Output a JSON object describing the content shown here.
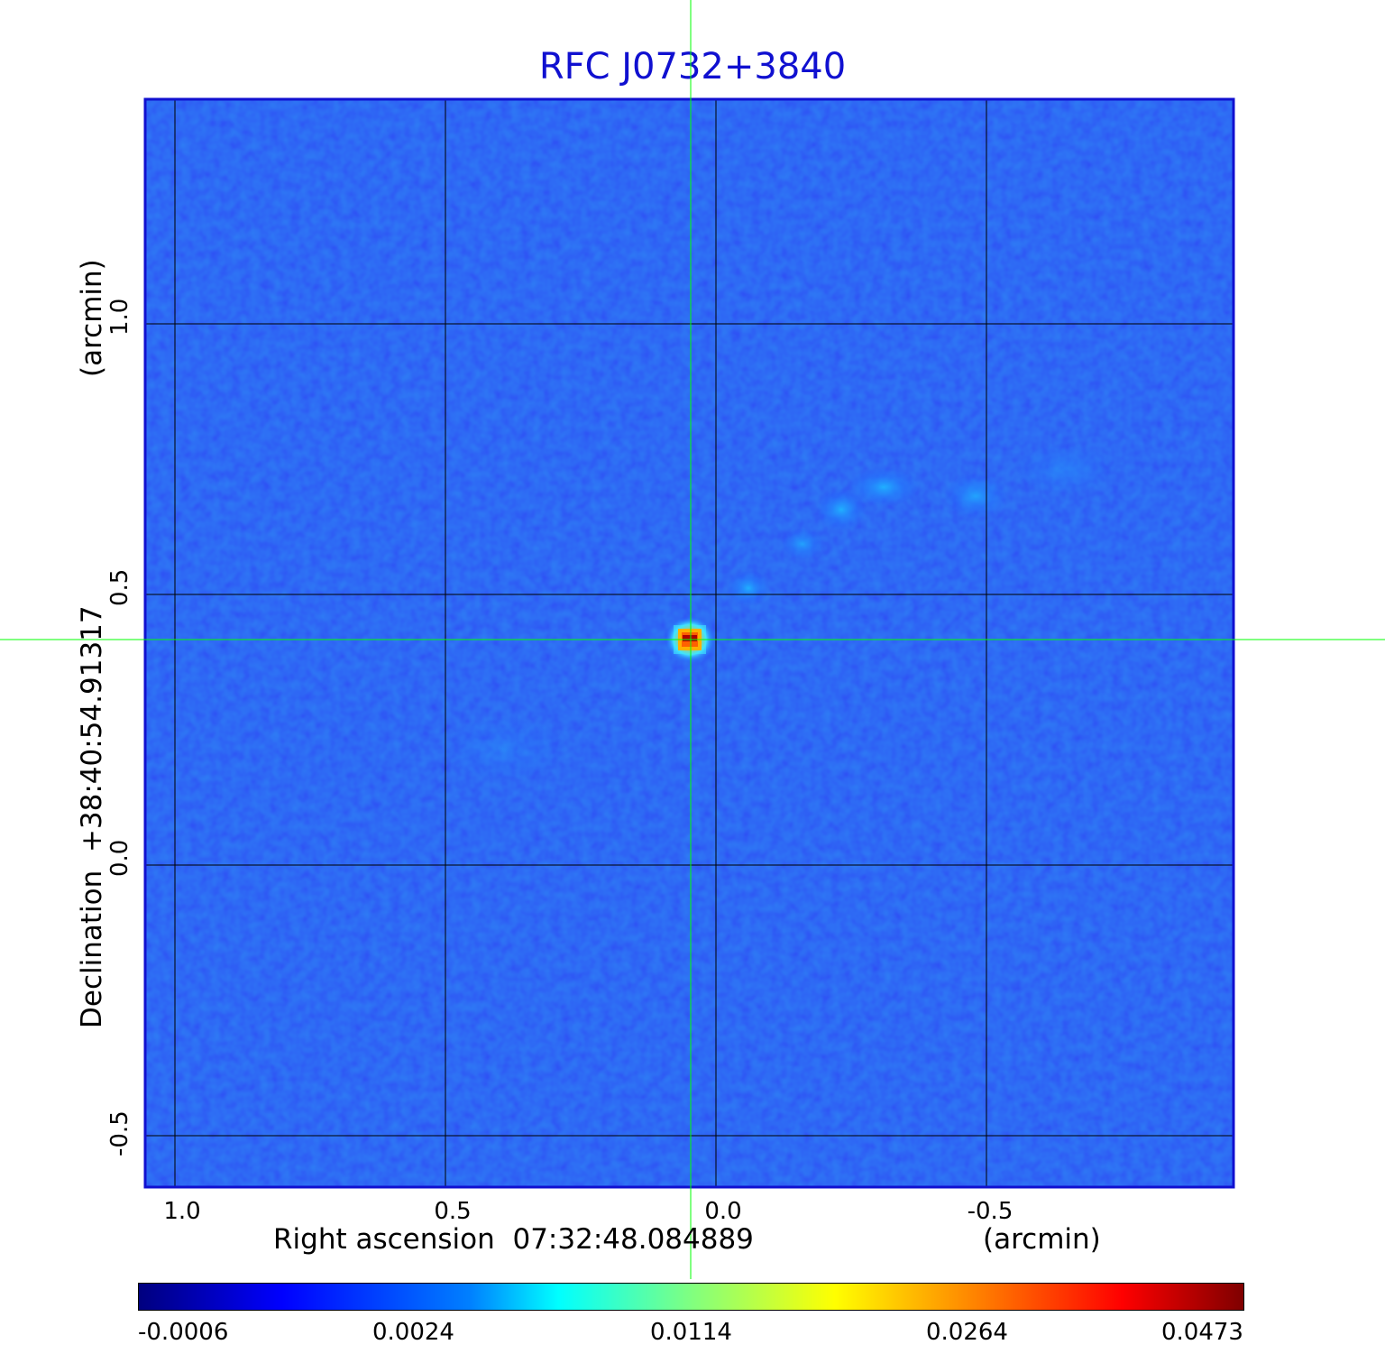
{
  "title": "RFC J0732+3840",
  "x_axis": {
    "label": "Right ascension  07:32:48.084889",
    "unit": "(arcmin)",
    "ticks": [
      "1.0",
      "0.5",
      "0.0",
      "-0.5"
    ]
  },
  "y_axis": {
    "label": "Declination  +38:40:54.91317",
    "unit": "(arcmin)",
    "ticks": [
      "1.0",
      "0.5",
      "0.0",
      "-0.5"
    ]
  },
  "colorbar": {
    "ticks": [
      "-0.0006",
      "0.0024",
      "0.0114",
      "0.0264",
      "0.0473"
    ],
    "colormap": "jet"
  },
  "colors": {
    "title": "#1010d0",
    "background_emission": "#1a3cf0",
    "crosshair": "#00ff00",
    "grid": "#000000"
  }
}
